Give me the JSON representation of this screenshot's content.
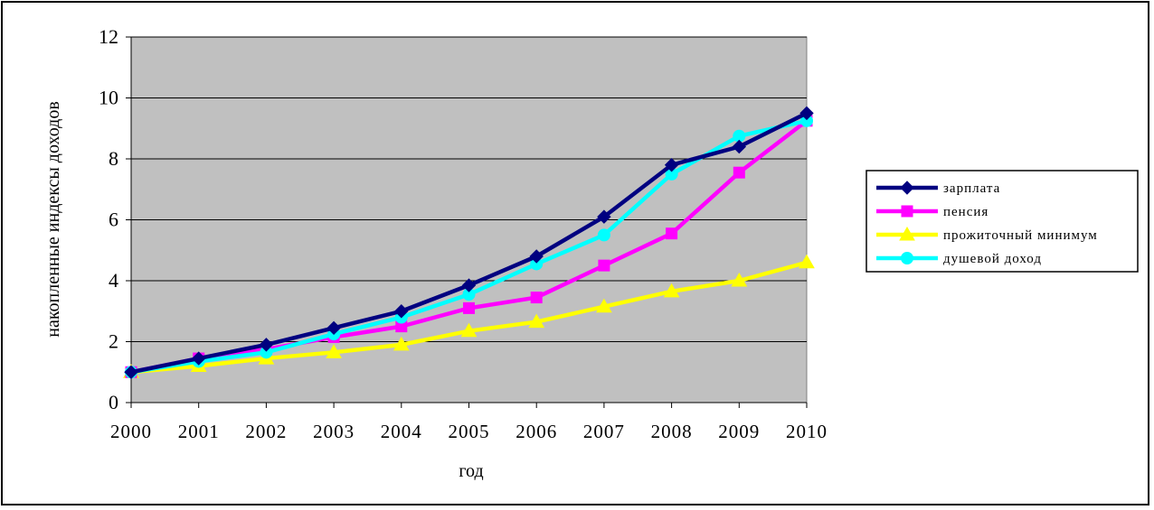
{
  "chart_data": {
    "type": "line",
    "xlabel": "год",
    "ylabel": "накопленные индексы доходов",
    "ylim": [
      0,
      12
    ],
    "yticks": [
      "0",
      "2",
      "4",
      "6",
      "8",
      "10",
      "12"
    ],
    "categories": [
      "2000",
      "2001",
      "2002",
      "2003",
      "2004",
      "2005",
      "2006",
      "2007",
      "2008",
      "2009",
      "2010"
    ],
    "grid": true,
    "legend_position": "right",
    "plot_background": "#c0c0c0",
    "series": [
      {
        "name": "зарплата",
        "color": "#000080",
        "marker": "diamond",
        "values": [
          1.0,
          1.45,
          1.9,
          2.45,
          3.0,
          3.85,
          4.8,
          6.1,
          7.8,
          8.4,
          9.5
        ]
      },
      {
        "name": "пенсия",
        "color": "#ff00ff",
        "marker": "square",
        "values": [
          1.0,
          1.45,
          1.75,
          2.15,
          2.5,
          3.1,
          3.45,
          4.5,
          5.55,
          7.55,
          9.25
        ]
      },
      {
        "name": "прожиточный минимум",
        "color": "#ffff00",
        "marker": "triangle",
        "values": [
          1.0,
          1.2,
          1.45,
          1.65,
          1.9,
          2.35,
          2.65,
          3.15,
          3.65,
          4.0,
          4.6
        ]
      },
      {
        "name": "душевой доход",
        "color": "#00ffff",
        "marker": "circle",
        "values": [
          1.0,
          1.35,
          1.65,
          2.25,
          2.8,
          3.55,
          4.55,
          5.5,
          7.5,
          8.75,
          9.25
        ]
      }
    ]
  }
}
